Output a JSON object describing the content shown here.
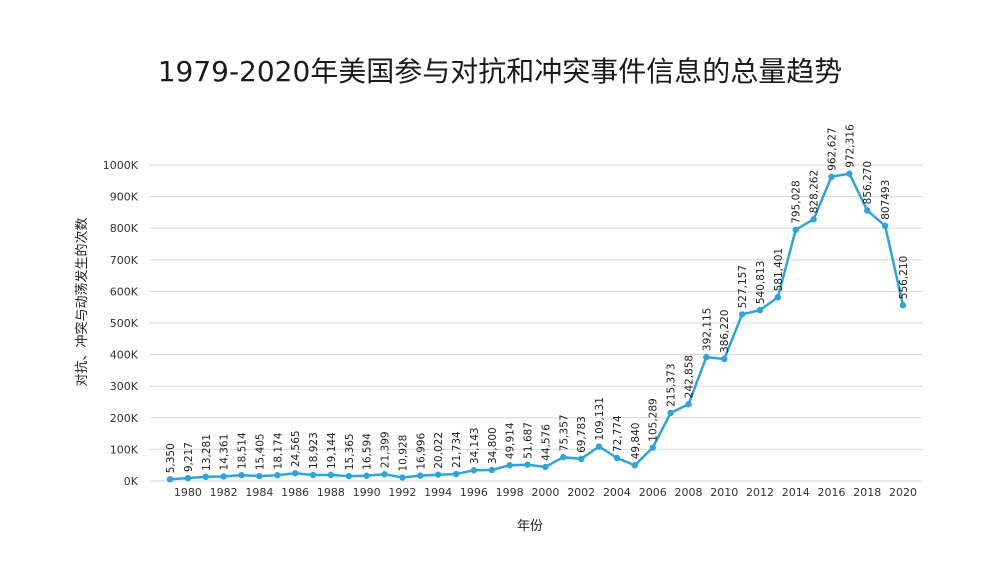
{
  "chart_data": {
    "type": "line",
    "title": "1979-2020年美国参与对抗和冲突事件信息的总量趋势",
    "xlabel": "年份",
    "ylabel": "对抗、冲突与动荡发生的次数",
    "ylim": [
      0,
      1000000
    ],
    "yticks": [
      {
        "value": 0,
        "label": "0K"
      },
      {
        "value": 100000,
        "label": "100K"
      },
      {
        "value": 200000,
        "label": "200K"
      },
      {
        "value": 300000,
        "label": "300K"
      },
      {
        "value": 400000,
        "label": "400K"
      },
      {
        "value": 500000,
        "label": "500K"
      },
      {
        "value": 600000,
        "label": "600K"
      },
      {
        "value": 700000,
        "label": "700K"
      },
      {
        "value": 800000,
        "label": "800K"
      },
      {
        "value": 900000,
        "label": "900K"
      },
      {
        "value": 1000000,
        "label": "1000K"
      }
    ],
    "xticks": [
      "1980",
      "1982",
      "1984",
      "1986",
      "1988",
      "1990",
      "1992",
      "1994",
      "1996",
      "1998",
      "2000",
      "2002",
      "2004",
      "2006",
      "2008",
      "2010",
      "2012",
      "2014",
      "2016",
      "2018",
      "2020"
    ],
    "grid": true,
    "color": "#2ea3dc",
    "x": [
      1979,
      1980,
      1981,
      1982,
      1983,
      1984,
      1985,
      1986,
      1987,
      1988,
      1989,
      1990,
      1991,
      1992,
      1993,
      1994,
      1995,
      1996,
      1997,
      1998,
      1999,
      2000,
      2001,
      2002,
      2003,
      2004,
      2005,
      2006,
      2007,
      2008,
      2009,
      2010,
      2011,
      2012,
      2013,
      2014,
      2015,
      2016,
      2017,
      2018,
      2019,
      2020
    ],
    "values": [
      5350,
      9217,
      13281,
      14361,
      18514,
      15405,
      18174,
      24565,
      18923,
      19144,
      15365,
      16594,
      21399,
      10928,
      16996,
      20022,
      21734,
      34143,
      34800,
      49914,
      51687,
      44576,
      75357,
      69783,
      109131,
      72774,
      49840,
      105289,
      215373,
      242858,
      392115,
      386220,
      527157,
      540813,
      581401,
      795028,
      828262,
      962627,
      972316,
      856270,
      807493,
      556210
    ],
    "labels": [
      "5,350",
      "9,217",
      "13,281",
      "14,361",
      "18,514",
      "15,405",
      "18,174",
      "24,565",
      "18,923",
      "19,144",
      "15,365",
      "16,594",
      "21,399",
      "10,928",
      "16,996",
      "20,022",
      "21,734",
      "34,143",
      "34,800",
      "49,914",
      "51,687",
      "44,576",
      "75,357",
      "69,783",
      "109,131",
      "72,774",
      "49,840",
      "105,289",
      "215,373",
      "242,858",
      "392,115",
      "386,220",
      "527,157",
      "540,813",
      "581,401",
      "795,028",
      "828,262",
      "962,627",
      "972,316",
      "856,270",
      "807493",
      "556,210"
    ]
  }
}
